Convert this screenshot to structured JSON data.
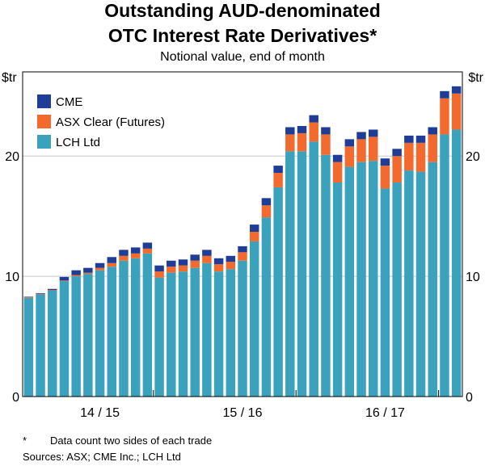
{
  "header": {
    "title_line1": "Outstanding AUD-denominated",
    "title_line2": "OTC Interest Rate Derivatives*",
    "subtitle": "Notional value, end of month"
  },
  "units": {
    "left": "$tr",
    "right": "$tr"
  },
  "notes": {
    "marker": "*",
    "footnote": "Data count two sides of each trade",
    "sources": "Sources: ASX; CME Inc.; LCH Ltd"
  },
  "colors": {
    "cme": "#1f3c96",
    "asx": "#f26a2e",
    "lch": "#3aa2bd",
    "axis": "#000000",
    "grid": "#c8c8c8"
  },
  "chart_data": {
    "type": "bar",
    "stacked": true,
    "title": "Outstanding AUD-denominated OTC Interest Rate Derivatives*",
    "subtitle": "Notional value, end of month",
    "ylabel": "$tr",
    "ylim": [
      0,
      27
    ],
    "yticks": [
      0,
      10,
      20
    ],
    "ytick_labels": [
      "0",
      "10",
      "20"
    ],
    "grid": true,
    "legend": "top-left",
    "x_labels": [
      {
        "label": "14 / 15",
        "index": 6
      },
      {
        "label": "15 / 16",
        "index": 18
      },
      {
        "label": "16 / 17",
        "index": 30
      }
    ],
    "series": [
      {
        "name": "LCH Ltd",
        "color": "#3aa2bd",
        "values": [
          8.2,
          8.5,
          8.8,
          9.6,
          10.0,
          10.2,
          10.5,
          10.8,
          11.3,
          11.5,
          11.9,
          9.9,
          10.3,
          10.4,
          10.7,
          11.1,
          10.4,
          10.6,
          11.3,
          12.9,
          14.9,
          17.4,
          20.4,
          20.4,
          21.2,
          20.1,
          17.8,
          19.1,
          19.5,
          19.6,
          17.3,
          17.8,
          18.8,
          18.7,
          19.5,
          21.8,
          22.2
        ]
      },
      {
        "name": "ASX Clear (Futures)",
        "color": "#f26a2e",
        "values": [
          0.05,
          0.05,
          0.05,
          0.05,
          0.1,
          0.1,
          0.2,
          0.3,
          0.4,
          0.4,
          0.4,
          0.5,
          0.5,
          0.5,
          0.6,
          0.6,
          0.6,
          0.6,
          0.7,
          0.8,
          1.0,
          1.2,
          1.4,
          1.5,
          1.6,
          1.7,
          1.7,
          1.7,
          1.9,
          2.0,
          1.9,
          2.2,
          2.3,
          2.4,
          2.3,
          3.0,
          3.0
        ]
      },
      {
        "name": "CME",
        "color": "#1f3c96",
        "values": [
          0.05,
          0.05,
          0.1,
          0.3,
          0.4,
          0.4,
          0.4,
          0.5,
          0.5,
          0.5,
          0.5,
          0.5,
          0.5,
          0.5,
          0.5,
          0.5,
          0.5,
          0.5,
          0.5,
          0.6,
          0.6,
          0.6,
          0.6,
          0.6,
          0.6,
          0.6,
          0.6,
          0.6,
          0.6,
          0.6,
          0.6,
          0.6,
          0.6,
          0.6,
          0.6,
          0.6,
          0.6
        ]
      }
    ]
  }
}
